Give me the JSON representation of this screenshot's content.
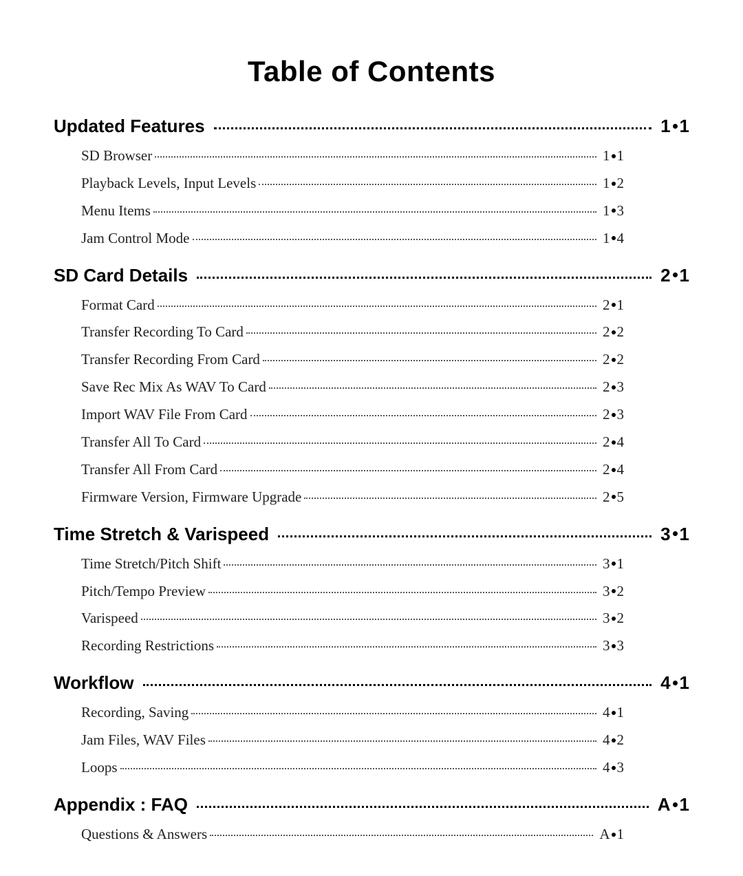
{
  "title": "Table of Contents",
  "title_fontsize": 42,
  "title_color": "#000000",
  "section_font": "Arial",
  "section_fontsize": 26,
  "sub_font": "Georgia",
  "sub_fontsize": 21,
  "background_color": "#ffffff",
  "text_color": "#000000",
  "sections": [
    {
      "label": "Updated Features",
      "page_prefix": "1",
      "page_suffix": "1",
      "items": [
        {
          "label": "SD Browser",
          "page_prefix": "1",
          "page_suffix": "1"
        },
        {
          "label": "Playback Levels, Input Levels",
          "page_prefix": "1",
          "page_suffix": "2"
        },
        {
          "label": "Menu Items",
          "page_prefix": "1",
          "page_suffix": "3"
        },
        {
          "label": "Jam Control Mode",
          "page_prefix": "1",
          "page_suffix": "4"
        }
      ]
    },
    {
      "label": "SD Card Details",
      "page_prefix": "2",
      "page_suffix": "1",
      "items": [
        {
          "label": "Format Card",
          "page_prefix": "2",
          "page_suffix": "1"
        },
        {
          "label": "Transfer Recording To Card",
          "page_prefix": "2",
          "page_suffix": "2"
        },
        {
          "label": "Transfer Recording From Card",
          "page_prefix": "2",
          "page_suffix": "2"
        },
        {
          "label": "Save Rec Mix As WAV To Card",
          "page_prefix": "2",
          "page_suffix": "3"
        },
        {
          "label": "Import WAV File From Card",
          "page_prefix": "2",
          "page_suffix": "3"
        },
        {
          "label": "Transfer All To Card",
          "page_prefix": "2",
          "page_suffix": "4"
        },
        {
          "label": "Transfer All From Card",
          "page_prefix": "2",
          "page_suffix": "4"
        },
        {
          "label": "Firmware Version, Firmware Upgrade",
          "page_prefix": "2",
          "page_suffix": "5"
        }
      ]
    },
    {
      "label": "Time Stretch & Varispeed",
      "page_prefix": "3",
      "page_suffix": "1",
      "items": [
        {
          "label": "Time Stretch/Pitch Shift",
          "page_prefix": "3",
          "page_suffix": "1"
        },
        {
          "label": "Pitch/Tempo Preview",
          "page_prefix": "3",
          "page_suffix": "2"
        },
        {
          "label": "Varispeed",
          "page_prefix": "3",
          "page_suffix": "2"
        },
        {
          "label": "Recording Restrictions",
          "page_prefix": "3",
          "page_suffix": "3"
        }
      ]
    },
    {
      "label": "Workflow",
      "page_prefix": "4",
      "page_suffix": "1",
      "items": [
        {
          "label": "Recording, Saving",
          "page_prefix": "4",
          "page_suffix": "1"
        },
        {
          "label": "Jam Files, WAV Files",
          "page_prefix": "4",
          "page_suffix": "2"
        },
        {
          "label": "Loops",
          "page_prefix": "4",
          "page_suffix": "3"
        }
      ]
    },
    {
      "label": "Appendix : FAQ",
      "page_prefix": "A",
      "page_suffix": "1",
      "items": [
        {
          "label": "Questions & Answers",
          "page_prefix": "A",
          "page_suffix": "1"
        }
      ]
    }
  ]
}
